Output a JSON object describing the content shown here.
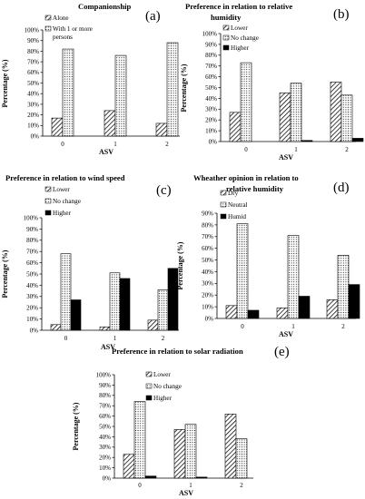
{
  "chart_data": [
    {
      "id": "a",
      "panel_label": "(a)",
      "type": "bar",
      "title_lines": [
        "Companionship"
      ],
      "xlabel": "ASV",
      "ylabel": "Percentage (%)",
      "categories": [
        "0",
        "1",
        "2"
      ],
      "ylim": [
        0,
        100
      ],
      "yticks": [
        "0%",
        "10%",
        "20%",
        "30%",
        "40%",
        "50%",
        "60%",
        "70%",
        "80%",
        "90%",
        "100%"
      ],
      "grid": false,
      "legend_placement": "top-left",
      "series": [
        {
          "name": "Alone",
          "pattern": "diag",
          "values": [
            17,
            24,
            12
          ]
        },
        {
          "name": "With 1 or more persons",
          "name_lines": [
            "With 1 or more",
            "persons"
          ],
          "pattern": "dots",
          "values": [
            82,
            76,
            88
          ]
        }
      ]
    },
    {
      "id": "b",
      "panel_label": "(b)",
      "type": "bar",
      "title_lines": [
        "Preference in relation to relative",
        "humidity"
      ],
      "xlabel": "ASV",
      "ylabel": "Percentage (%)",
      "categories": [
        "0",
        "1",
        "2"
      ],
      "ylim": [
        0,
        100
      ],
      "yticks": [
        "0%",
        "10%",
        "20%",
        "30%",
        "40%",
        "50%",
        "60%",
        "70%",
        "80%",
        "90%",
        "100%"
      ],
      "grid": false,
      "legend_placement": "top-left",
      "series": [
        {
          "name": "Lower",
          "pattern": "diag",
          "values": [
            27,
            45,
            55
          ]
        },
        {
          "name": "No change",
          "pattern": "dots",
          "values": [
            73,
            54,
            43
          ]
        },
        {
          "name": "Higher",
          "pattern": "solid",
          "values": [
            0,
            1,
            3
          ]
        }
      ]
    },
    {
      "id": "c",
      "panel_label": "(c)",
      "type": "bar",
      "title_lines": [
        "Preference in relation to wind speed"
      ],
      "xlabel": "ASV",
      "ylabel": "Percentage (%)",
      "categories": [
        "0",
        "1",
        "2"
      ],
      "ylim": [
        0,
        100
      ],
      "yticks": [
        "0%",
        "10%",
        "20%",
        "30%",
        "40%",
        "50%",
        "60%",
        "70%",
        "80%",
        "90%",
        "100%"
      ],
      "grid": false,
      "legend_placement": "top-left",
      "series": [
        {
          "name": "Lower",
          "pattern": "diag",
          "values": [
            5,
            3,
            9
          ]
        },
        {
          "name": "No change",
          "pattern": "dots",
          "values": [
            68,
            51,
            36
          ]
        },
        {
          "name": "Higher",
          "pattern": "solid",
          "values": [
            27,
            46,
            55
          ]
        }
      ]
    },
    {
      "id": "d",
      "panel_label": "(d)",
      "type": "bar",
      "title_lines": [
        "Wheather opinion in relation to",
        "relative humidity"
      ],
      "xlabel": "ASV",
      "ylabel": "Percentage (%)",
      "categories": [
        "0",
        "1",
        "2"
      ],
      "ylim": [
        0,
        90
      ],
      "yticks": [
        "0%",
        "10%",
        "20%",
        "30%",
        "40%",
        "50%",
        "60%",
        "70%",
        "80%",
        "90%"
      ],
      "grid": false,
      "legend_placement": "top-left",
      "series": [
        {
          "name": "Dry",
          "pattern": "diag",
          "values": [
            11,
            9,
            16
          ]
        },
        {
          "name": "Neutral",
          "pattern": "dots",
          "values": [
            81,
            71,
            54
          ]
        },
        {
          "name": "Humid",
          "pattern": "solid",
          "values": [
            7,
            19,
            29
          ]
        }
      ]
    },
    {
      "id": "e",
      "panel_label": "(e)",
      "type": "bar",
      "title_lines": [
        "Preference in relation to solar radiation"
      ],
      "xlabel": "ASV",
      "ylabel": "Percentage (%)",
      "categories": [
        "0",
        "1",
        "2"
      ],
      "ylim": [
        0,
        100
      ],
      "yticks": [
        "0%",
        "10%",
        "20%",
        "30%",
        "40%",
        "50%",
        "60%",
        "70%",
        "80%",
        "90%",
        "100%"
      ],
      "grid": false,
      "legend_placement": "top-right",
      "series": [
        {
          "name": "Lower",
          "pattern": "diag",
          "values": [
            23,
            47,
            62
          ]
        },
        {
          "name": "No change",
          "pattern": "dots",
          "values": [
            74,
            52,
            38
          ]
        },
        {
          "name": "Higher",
          "pattern": "solid",
          "values": [
            2,
            1,
            0
          ]
        }
      ]
    }
  ]
}
